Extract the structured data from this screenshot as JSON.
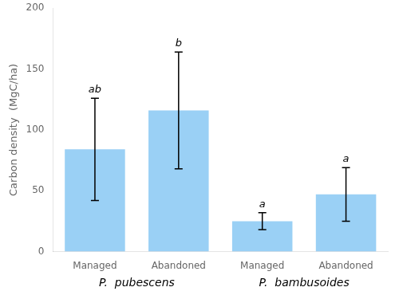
{
  "chart_data": {
    "type": "bar",
    "categories": [
      "Managed",
      "Abandoned",
      "Managed",
      "Abandoned"
    ],
    "values": [
      84,
      116,
      25,
      47
    ],
    "errors": [
      42,
      48,
      7,
      22
    ],
    "annotations": [
      "ab",
      "b",
      "a",
      "a"
    ],
    "groups": [
      {
        "label": "P.  pubescens",
        "count": 2
      },
      {
        "label": "P.  bambusoides",
        "count": 2
      }
    ],
    "ylabel": "Carbon density  (MgC/ha)",
    "ylim": [
      0,
      200
    ],
    "yticks": [
      0,
      50,
      100,
      150,
      200
    ],
    "grid": false,
    "data_labels": false
  }
}
